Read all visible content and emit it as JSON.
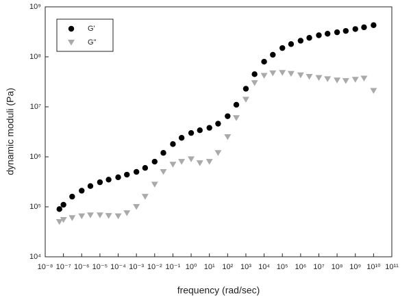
{
  "chart_data": {
    "type": "scatter",
    "x_label": "frequency (rad/sec)",
    "y_label": "dynamic moduli (Pa)",
    "x_log": true,
    "y_log": true,
    "grid": false,
    "legend": "upper left",
    "xlim": [
      1e-08,
      100000000000.0
    ],
    "ylim": [
      10000,
      1000000000
    ],
    "xticks": [
      {
        "value": 1e-08,
        "label": "10⁻⁸"
      },
      {
        "value": 1e-07,
        "label": "10⁻⁷"
      },
      {
        "value": 1e-06,
        "label": "10⁻⁶"
      },
      {
        "value": 1e-05,
        "label": "10⁻⁵"
      },
      {
        "value": 0.0001,
        "label": "10⁻⁴"
      },
      {
        "value": 0.001,
        "label": "10⁻³"
      },
      {
        "value": 0.01,
        "label": "10⁻²"
      },
      {
        "value": 0.1,
        "label": "10⁻¹"
      },
      {
        "value": 1,
        "label": "10⁰"
      },
      {
        "value": 10,
        "label": "10¹"
      },
      {
        "value": 100,
        "label": "10²"
      },
      {
        "value": 1000,
        "label": "10³"
      },
      {
        "value": 10000,
        "label": "10⁴"
      },
      {
        "value": 100000,
        "label": "10⁵"
      },
      {
        "value": 1000000,
        "label": "10⁶"
      },
      {
        "value": 10000000,
        "label": "10⁷"
      },
      {
        "value": 100000000,
        "label": "10⁸"
      },
      {
        "value": 1000000000,
        "label": "10⁹"
      },
      {
        "value": 10000000000,
        "label": "10¹⁰"
      },
      {
        "value": 100000000000,
        "label": "10¹¹"
      }
    ],
    "yticks": [
      {
        "value": 10000,
        "label": "10⁴"
      },
      {
        "value": 100000,
        "label": "10⁵"
      },
      {
        "value": 1000000,
        "label": "10⁶"
      },
      {
        "value": 10000000,
        "label": "10⁷"
      },
      {
        "value": 100000000,
        "label": "10⁸"
      },
      {
        "value": 1000000000,
        "label": "10⁹"
      }
    ],
    "x": [
      6e-08,
      1e-07,
      3e-07,
      1e-06,
      3e-06,
      1e-05,
      3e-05,
      0.0001,
      0.0003,
      0.001,
      0.003,
      0.01,
      0.03,
      0.1,
      0.3,
      1,
      3,
      10,
      30,
      100,
      300,
      1000,
      3000,
      10000,
      30000,
      100000,
      300000,
      1000000,
      3000000,
      10000000,
      30000000,
      100000000,
      300000000,
      1000000000,
      3000000000,
      10000000000
    ],
    "series": [
      {
        "name": "G'",
        "color": "#000000",
        "marker": "circle",
        "values": [
          90000,
          110000,
          160000,
          210000,
          260000,
          310000,
          350000,
          390000,
          440000,
          500000,
          600000,
          800000,
          1200000,
          1800000,
          2400000,
          3000000,
          3400000,
          3800000,
          4600000,
          6500000,
          11000000,
          23000000,
          45000000,
          80000000,
          110000000,
          150000000,
          180000000,
          210000000,
          240000000,
          270000000,
          290000000,
          310000000,
          330000000,
          360000000,
          390000000,
          430000000
        ]
      },
      {
        "name": "G\"",
        "color": "#aaaaaa",
        "marker": "triangle-down",
        "values": [
          50000,
          55000,
          60000,
          65000,
          68000,
          68000,
          66000,
          65000,
          75000,
          100000,
          160000,
          280000,
          500000,
          700000,
          800000,
          900000,
          750000,
          800000,
          1200000,
          2500000,
          6000000,
          14000000,
          30000000,
          42000000,
          47000000,
          48000000,
          46000000,
          43000000,
          40000000,
          38000000,
          36000000,
          34000000,
          33000000,
          35000000,
          37000000,
          21000000
        ]
      }
    ]
  }
}
